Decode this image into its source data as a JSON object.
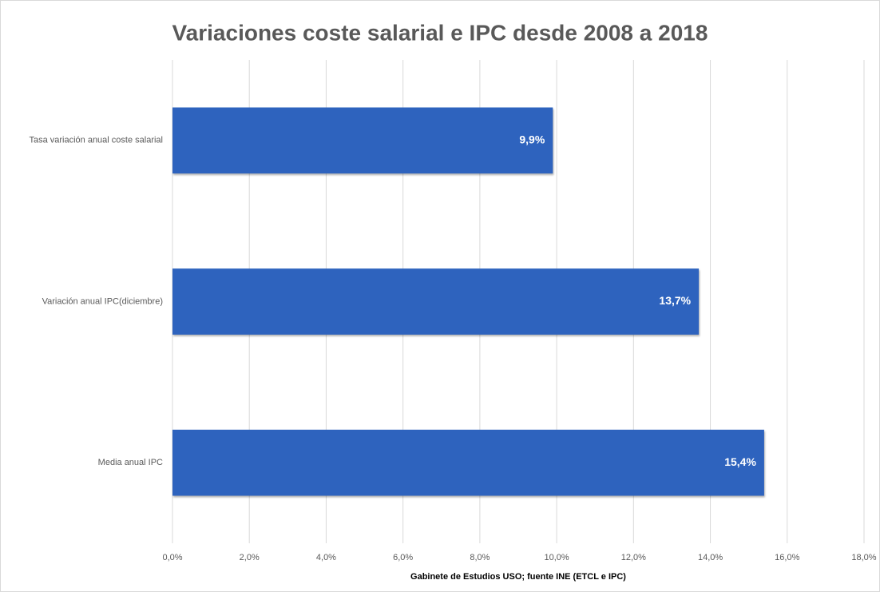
{
  "chart_data": {
    "type": "bar",
    "orientation": "horizontal",
    "title": "Variaciones coste salarial e IPC desde 2008 a 2018",
    "xlabel": "Gabinete de Estudios USO; fuente INE (ETCL e IPC)",
    "categories": [
      "Tasa variación anual coste salarial",
      "Variación anual IPC(diciembre)",
      "Media anual IPC"
    ],
    "values": [
      9.9,
      13.7,
      15.4
    ],
    "value_labels": [
      "9,9%",
      "13,7%",
      "15,4%"
    ],
    "color": "#2e63be",
    "xlim": [
      0,
      18
    ],
    "xticks": [
      {
        "value": 0,
        "label": "0,0%"
      },
      {
        "value": 2,
        "label": "2,0%"
      },
      {
        "value": 4,
        "label": "4,0%"
      },
      {
        "value": 6,
        "label": "6,0%"
      },
      {
        "value": 8,
        "label": "8,0%"
      },
      {
        "value": 10,
        "label": "10,0%"
      },
      {
        "value": 12,
        "label": "12,0%"
      },
      {
        "value": 14,
        "label": "14,0%"
      },
      {
        "value": 16,
        "label": "16,0%"
      },
      {
        "value": 18,
        "label": "18,0%"
      }
    ],
    "grid": true
  }
}
